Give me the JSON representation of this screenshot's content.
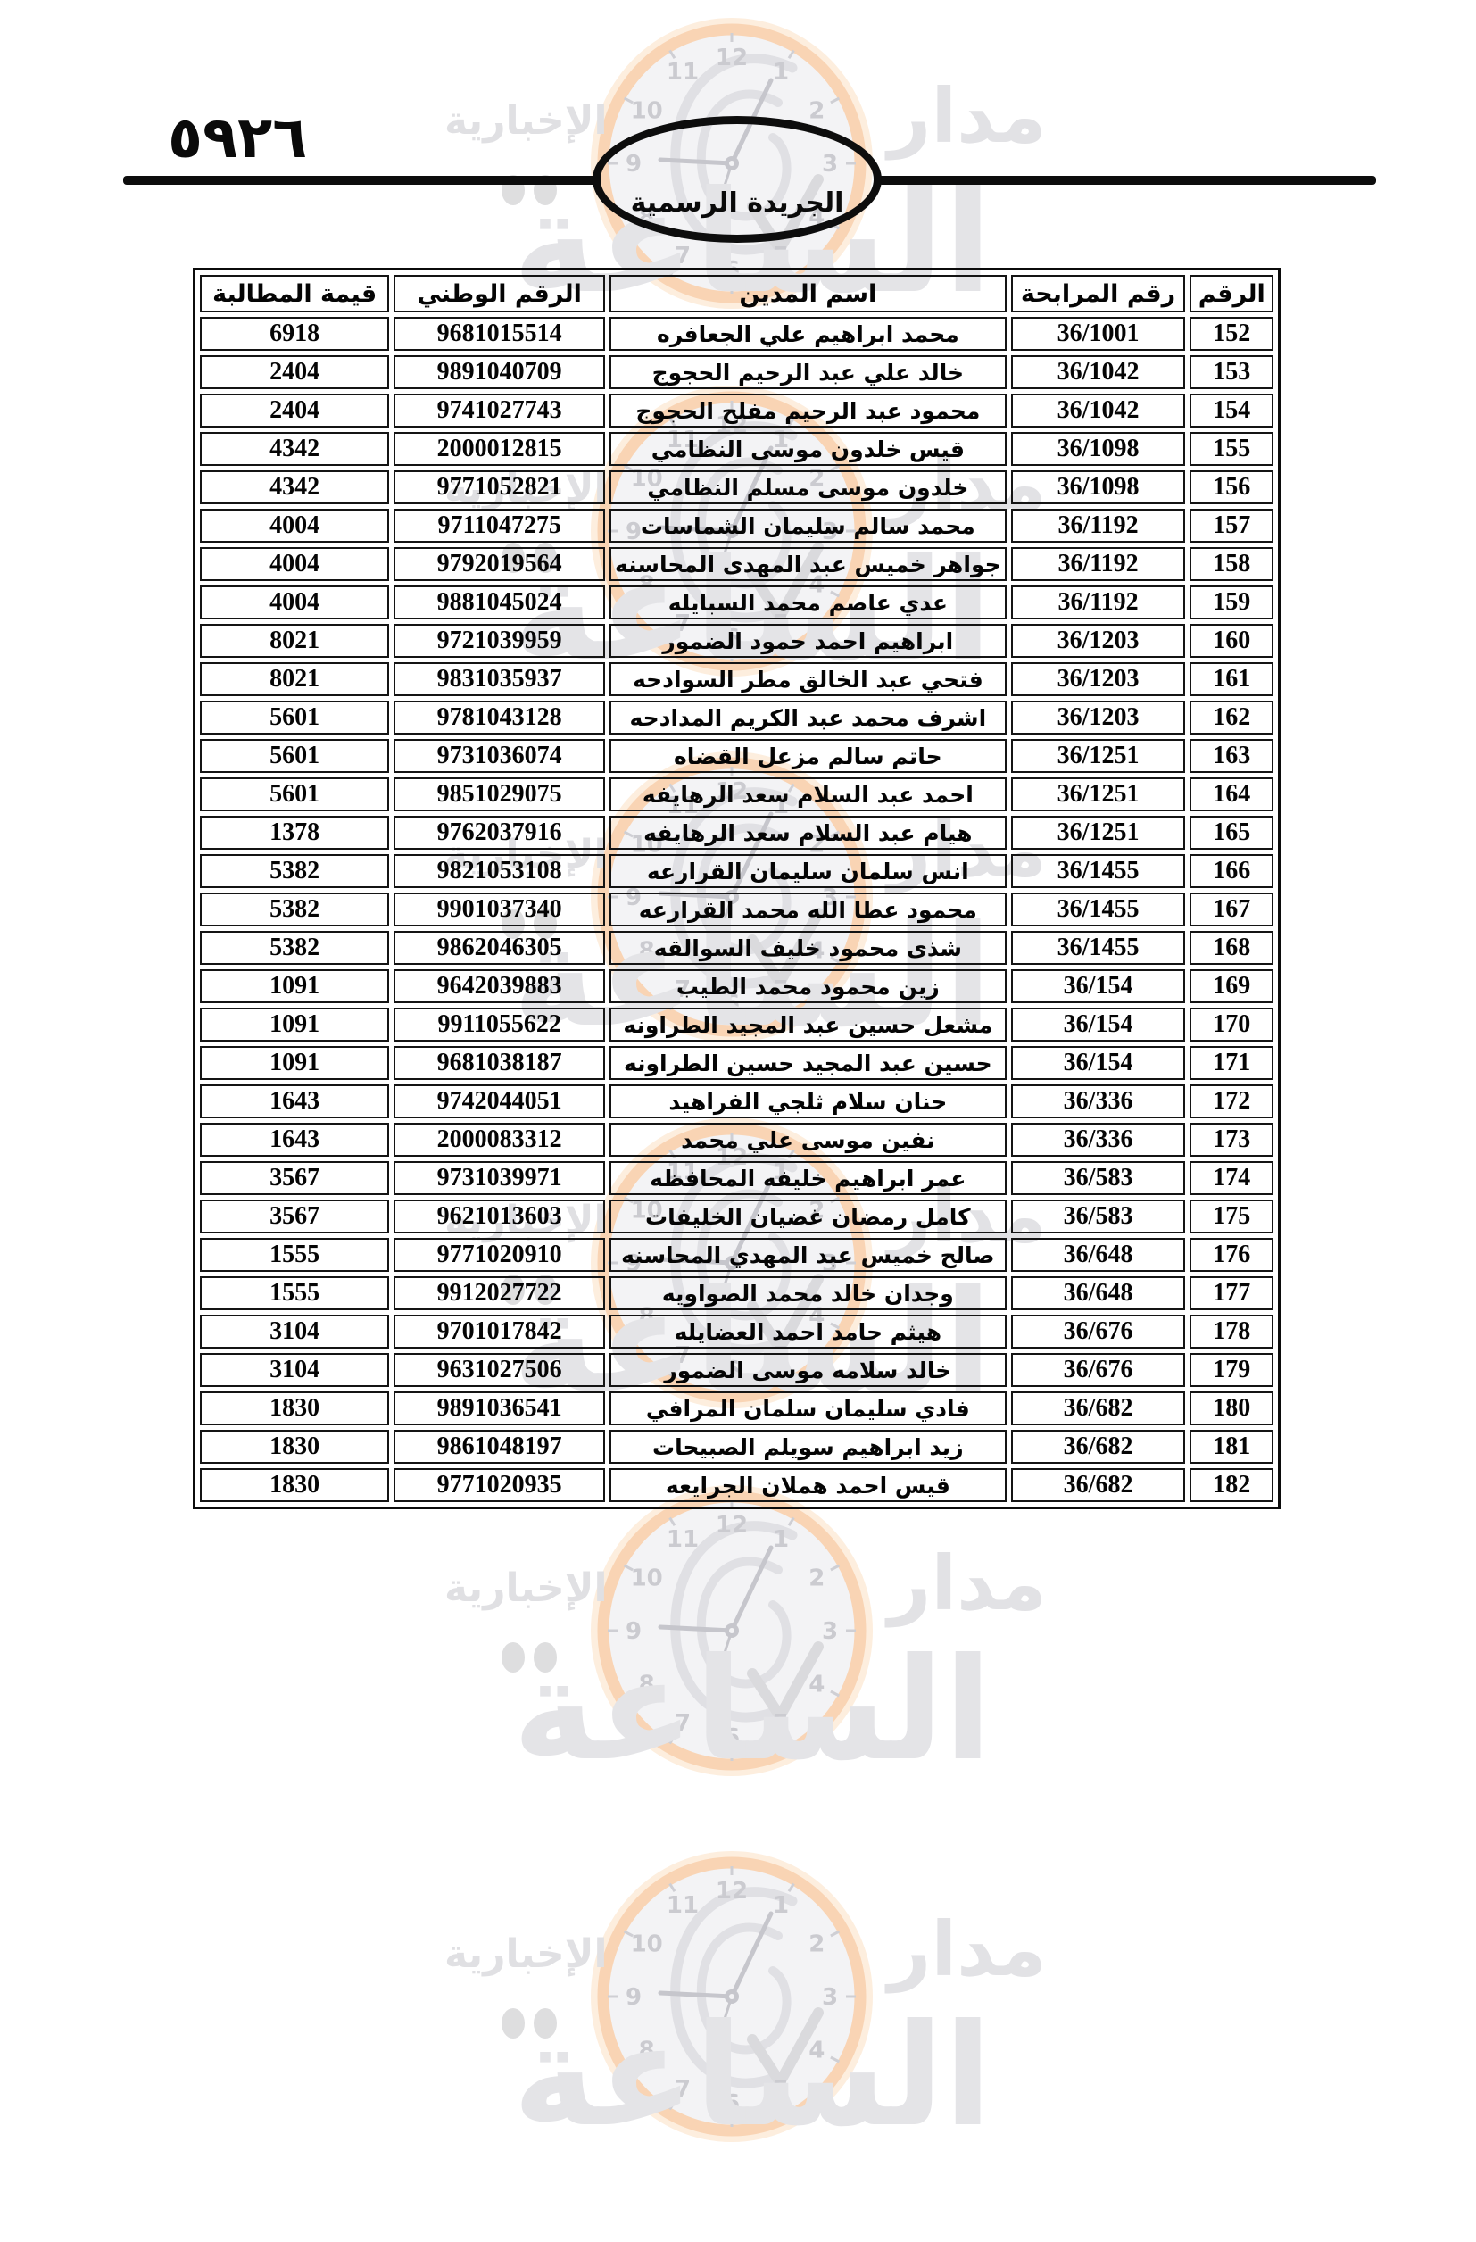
{
  "page": {
    "page_number_arabic": "٥٩٢٦",
    "gazette_title": "الجريدة الرسمية"
  },
  "watermark": {
    "brand_word_right": "مدار",
    "brand_word_main": "الساعة",
    "brand_word_sub": "الإخبارية",
    "clock_numbers": [
      "12",
      "1",
      "2",
      "3",
      "4",
      "5",
      "6",
      "7",
      "8",
      "9",
      "10",
      "11"
    ],
    "colors": {
      "ring": "#f9d4b4",
      "halo": "#fdeede",
      "face": "#f3f3f5",
      "gray_text": "#e2e2e5",
      "clock_gray": "#cbcbd0"
    }
  },
  "table": {
    "headers": [
      "الرقم",
      "رقم المرابحة",
      "اسم المدين",
      "الرقم الوطني",
      "قيمة المطالبة"
    ],
    "rows": [
      {
        "seq": "152",
        "murabaha": "36/1001",
        "name": "محمد ابراهيم علي الجعافره",
        "national_id": "9681015514",
        "claim": "6918"
      },
      {
        "seq": "153",
        "murabaha": "36/1042",
        "name": "خالد علي عبد الرحيم الحجوج",
        "national_id": "9891040709",
        "claim": "2404"
      },
      {
        "seq": "154",
        "murabaha": "36/1042",
        "name": "محمود عبد الرحيم مفلح الحجوج",
        "national_id": "9741027743",
        "claim": "2404"
      },
      {
        "seq": "155",
        "murabaha": "36/1098",
        "name": "قيس خلدون موسى النظامي",
        "national_id": "2000012815",
        "claim": "4342"
      },
      {
        "seq": "156",
        "murabaha": "36/1098",
        "name": "خلدون موسى مسلم النظامي",
        "national_id": "9771052821",
        "claim": "4342"
      },
      {
        "seq": "157",
        "murabaha": "36/1192",
        "name": "محمد سالم سليمان الشماسات",
        "national_id": "9711047275",
        "claim": "4004"
      },
      {
        "seq": "158",
        "murabaha": "36/1192",
        "name": "جواهر خميس عبد المهدى المحاسنه",
        "national_id": "9792019564",
        "claim": "4004"
      },
      {
        "seq": "159",
        "murabaha": "36/1192",
        "name": "عدي عاصم محمد السبايله",
        "national_id": "9881045024",
        "claim": "4004"
      },
      {
        "seq": "160",
        "murabaha": "36/1203",
        "name": "ابراهيم احمد حمود الضمور",
        "national_id": "9721039959",
        "claim": "8021"
      },
      {
        "seq": "161",
        "murabaha": "36/1203",
        "name": "فتحي عبد الخالق مطر السوادحه",
        "national_id": "9831035937",
        "claim": "8021"
      },
      {
        "seq": "162",
        "murabaha": "36/1203",
        "name": "اشرف محمد عبد الكريم المدادحه",
        "national_id": "9781043128",
        "claim": "5601"
      },
      {
        "seq": "163",
        "murabaha": "36/1251",
        "name": "حاتم سالم مزعل القضاه",
        "national_id": "9731036074",
        "claim": "5601"
      },
      {
        "seq": "164",
        "murabaha": "36/1251",
        "name": "احمد عبد السلام سعد الرهايفه",
        "national_id": "9851029075",
        "claim": "5601"
      },
      {
        "seq": "165",
        "murabaha": "36/1251",
        "name": "هيام عبد السلام سعد الرهايفه",
        "national_id": "9762037916",
        "claim": "1378"
      },
      {
        "seq": "166",
        "murabaha": "36/1455",
        "name": "انس سلمان سليمان القرارعه",
        "national_id": "9821053108",
        "claim": "5382"
      },
      {
        "seq": "167",
        "murabaha": "36/1455",
        "name": "محمود عطا الله محمد القرارعه",
        "national_id": "9901037340",
        "claim": "5382"
      },
      {
        "seq": "168",
        "murabaha": "36/1455",
        "name": "شذى محمود خليف السوالقه",
        "national_id": "9862046305",
        "claim": "5382"
      },
      {
        "seq": "169",
        "murabaha": "36/154",
        "name": "زين محمود محمد الطيب",
        "national_id": "9642039883",
        "claim": "1091"
      },
      {
        "seq": "170",
        "murabaha": "36/154",
        "name": "مشعل حسين عبد المجيد الطراونه",
        "national_id": "9911055622",
        "claim": "1091"
      },
      {
        "seq": "171",
        "murabaha": "36/154",
        "name": "حسين عبد المجيد حسين الطراونه",
        "national_id": "9681038187",
        "claim": "1091"
      },
      {
        "seq": "172",
        "murabaha": "36/336",
        "name": "حنان سلام ثلجي الفراهيد",
        "national_id": "9742044051",
        "claim": "1643"
      },
      {
        "seq": "173",
        "murabaha": "36/336",
        "name": "نفين موسى علي محمد",
        "national_id": "2000083312",
        "claim": "1643"
      },
      {
        "seq": "174",
        "murabaha": "36/583",
        "name": "عمر ابراهيم خليفه المحافظه",
        "national_id": "9731039971",
        "claim": "3567"
      },
      {
        "seq": "175",
        "murabaha": "36/583",
        "name": "كامل رمضان غضيان الخليفات",
        "national_id": "9621013603",
        "claim": "3567"
      },
      {
        "seq": "176",
        "murabaha": "36/648",
        "name": "صالح خميس عبد المهدي المحاسنه",
        "national_id": "9771020910",
        "claim": "1555"
      },
      {
        "seq": "177",
        "murabaha": "36/648",
        "name": "وجدان خالد محمد الصواويه",
        "national_id": "9912027722",
        "claim": "1555"
      },
      {
        "seq": "178",
        "murabaha": "36/676",
        "name": "هيثم حامد احمد العضايله",
        "national_id": "9701017842",
        "claim": "3104"
      },
      {
        "seq": "179",
        "murabaha": "36/676",
        "name": "خالد سلامه موسى الضمور",
        "national_id": "9631027506",
        "claim": "3104"
      },
      {
        "seq": "180",
        "murabaha": "36/682",
        "name": "فادي سليمان سلمان المرافي",
        "national_id": "9891036541",
        "claim": "1830"
      },
      {
        "seq": "181",
        "murabaha": "36/682",
        "name": "زيد ابراهيم سويلم الصبيحات",
        "national_id": "9861048197",
        "claim": "1830"
      },
      {
        "seq": "182",
        "murabaha": "36/682",
        "name": "قيس احمد هملان الجرايعه",
        "national_id": "9771020935",
        "claim": "1830"
      }
    ]
  }
}
